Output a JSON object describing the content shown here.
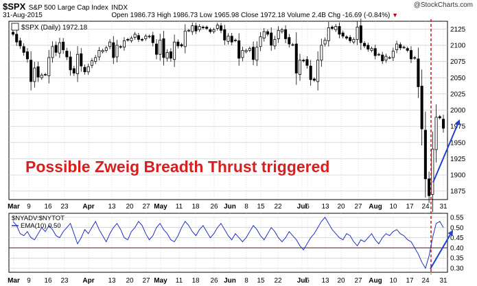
{
  "header": {
    "ticker": "$SPX",
    "name": "S&P 500 Large Cap Index",
    "exchange": "INDX",
    "date": "31-Aug-2015",
    "open_label": "Open",
    "open": "1986.73",
    "high_label": "High",
    "high": "1986.73",
    "low_label": "Low",
    "low": "1965.98",
    "close_label": "Close",
    "close": "1972.18",
    "volume_label": "Volume",
    "volume": "2.4B",
    "chg_label": "Chg",
    "chg": "-16.69 (-0.84%)",
    "logo": "@StockCharts.com"
  },
  "colors": {
    "candle": "#000000",
    "grid": "#c8c8c8",
    "annotation_red": "#d81e1e",
    "arrow_blue": "#1f3fd1",
    "breadth_line": "#1f2fbf",
    "threshold_line": "#a00000"
  },
  "chart_data": [
    {
      "type": "candlestick",
      "legend": "$SPX (Daily) 1972.18",
      "annotation": "Possible Zweig Breadth Thrust triggered",
      "ylim": [
        1862,
        2137
      ],
      "y_ticks": [
        1875,
        1900,
        1925,
        1950,
        1975,
        2000,
        2025,
        2050,
        2075,
        2100,
        2125
      ],
      "x_labels": [
        "Mar",
        "9",
        "16",
        "23",
        "Apr",
        "13",
        "20",
        "27",
        "May",
        "11",
        "18",
        "26",
        "Jun",
        "8",
        "15",
        "22",
        "Jul",
        "6",
        "13",
        "20",
        "27",
        "Aug",
        "10",
        "17",
        "24",
        "31"
      ],
      "closes": [
        2117,
        2105,
        2099,
        2089,
        2079,
        2044,
        2065,
        2051,
        2054,
        2055,
        2081,
        2098,
        2089,
        2104,
        2093,
        2082,
        2062,
        2057,
        2086,
        2068,
        2059,
        2067,
        2076,
        2081,
        2092,
        2092,
        2096,
        2105,
        2081,
        2100,
        2097,
        2107,
        2108,
        2111,
        2117,
        2109,
        2108,
        2114,
        2114,
        2104,
        2086,
        2108,
        2081,
        2089,
        2080,
        2105,
        2099,
        2099,
        2122,
        2123,
        2130,
        2122,
        2129,
        2127,
        2126,
        2121,
        2124,
        2131,
        2123,
        2108,
        2114,
        2105,
        2108,
        2080,
        2092,
        2092,
        2095,
        2078,
        2097,
        2113,
        2121,
        2117,
        2100,
        2109,
        2123,
        2124,
        2110,
        2102,
        2101,
        2057,
        2077,
        2076,
        2069,
        2047,
        2046,
        2077,
        2100,
        2108,
        2127,
        2126,
        2129,
        2117,
        2114,
        2111,
        2107,
        2109,
        2128,
        2104,
        2099,
        2094,
        2095,
        2084,
        2086,
        2076,
        2083,
        2081,
        2091,
        2102,
        2096,
        2097,
        2092,
        2079,
        2080,
        2036,
        1971,
        1894,
        1868,
        1940,
        1989,
        1988,
        1972
      ],
      "last_close": 1972.18
    },
    {
      "type": "line",
      "legend": "$NYADV:$NYTOT",
      "series": [
        {
          "name": "EMA(10) 0.50"
        }
      ],
      "ylim": [
        0.28,
        0.57
      ],
      "y_ticks": [
        0.3,
        0.35,
        0.4,
        0.45,
        0.5,
        0.55
      ],
      "threshold": 0.4,
      "x_labels": [
        "Mar",
        "9",
        "16",
        "23",
        "Apr",
        "13",
        "20",
        "27",
        "May",
        "11",
        "18",
        "26",
        "Jun",
        "8",
        "15",
        "22",
        "Jul",
        "6",
        "13",
        "20",
        "27",
        "Aug",
        "10",
        "17",
        "24",
        "31"
      ],
      "values": [
        0.53,
        0.51,
        0.47,
        0.46,
        0.48,
        0.45,
        0.44,
        0.47,
        0.5,
        0.48,
        0.51,
        0.49,
        0.46,
        0.45,
        0.48,
        0.5,
        0.52,
        0.47,
        0.42,
        0.45,
        0.49,
        0.47,
        0.5,
        0.53,
        0.49,
        0.46,
        0.43,
        0.47,
        0.5,
        0.52,
        0.49,
        0.45,
        0.44,
        0.48,
        0.5,
        0.53,
        0.51,
        0.47,
        0.44,
        0.46,
        0.5,
        0.52,
        0.49,
        0.47,
        0.44,
        0.43,
        0.46,
        0.5,
        0.53,
        0.51,
        0.48,
        0.46,
        0.49,
        0.51,
        0.48,
        0.45,
        0.47,
        0.5,
        0.52,
        0.49,
        0.46,
        0.44,
        0.47,
        0.45,
        0.43,
        0.45,
        0.48,
        0.51,
        0.49,
        0.46,
        0.44,
        0.47,
        0.5,
        0.48,
        0.45,
        0.43,
        0.45,
        0.48,
        0.46,
        0.44,
        0.41,
        0.39,
        0.42,
        0.45,
        0.47,
        0.5,
        0.53,
        0.55,
        0.52,
        0.49,
        0.47,
        0.45,
        0.44,
        0.47,
        0.46,
        0.43,
        0.41,
        0.44,
        0.43,
        0.45,
        0.47,
        0.44,
        0.42,
        0.45,
        0.47,
        0.46,
        0.48,
        0.49,
        0.47,
        0.46,
        0.44,
        0.43,
        0.4,
        0.37,
        0.33,
        0.3,
        0.36,
        0.45,
        0.52,
        0.53,
        0.5
      ],
      "last_value": 0.5
    }
  ]
}
